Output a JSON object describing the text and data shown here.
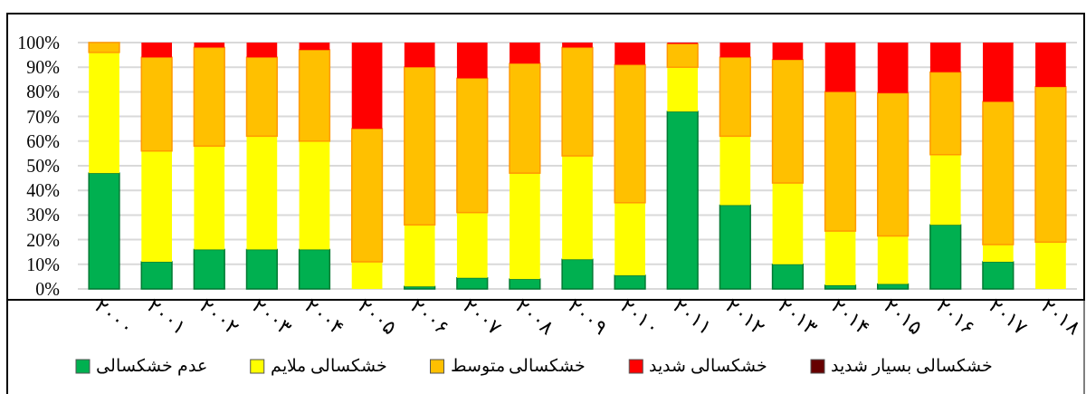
{
  "chart_data": {
    "type": "bar",
    "stacked": true,
    "grid": "y",
    "legend": "bottom",
    "categories": [
      "۲۰۰۰",
      "۲۰۰۱",
      "۲۰۰۲",
      "۲۰۰۳",
      "۲۰۰۴",
      "۲۰۰۵",
      "۲۰۰۶",
      "۲۰۰۷",
      "۲۰۰۸",
      "۲۰۰۹",
      "۲۰۱۰",
      "۲۰۱۱",
      "۲۰۱۲",
      "۲۰۱۳",
      "۲۰۱۴",
      "۲۰۱۵",
      "۲۰۱۶",
      "۲۰۱۷",
      "۲۰۱۸"
    ],
    "ylim": [
      0,
      100
    ],
    "yticks": [
      {
        "value": 0,
        "label": "0%"
      },
      {
        "value": 10,
        "label": "10%"
      },
      {
        "value": 20,
        "label": "20%"
      },
      {
        "value": 30,
        "label": "30%"
      },
      {
        "value": 40,
        "label": "40%"
      },
      {
        "value": 50,
        "label": "50%"
      },
      {
        "value": 60,
        "label": "60%"
      },
      {
        "value": 70,
        "label": "70%"
      },
      {
        "value": 80,
        "label": "80%"
      },
      {
        "value": 90,
        "label": "90%"
      },
      {
        "value": 100,
        "label": "100%"
      }
    ],
    "series": [
      {
        "name": "عدم خشکسالی",
        "color": "#00b050",
        "values": [
          47,
          11,
          16,
          16,
          16,
          0,
          1,
          4.5,
          4,
          12,
          5.5,
          72,
          34,
          10,
          1.5,
          2,
          26,
          11,
          0
        ]
      },
      {
        "name": "خشکسالی ملایم",
        "color": "#ffff00",
        "values": [
          49,
          45,
          42,
          46,
          44,
          11,
          25,
          26.5,
          43,
          42,
          29.5,
          18,
          28,
          33,
          22,
          19.5,
          28.5,
          7,
          19
        ]
      },
      {
        "name": "خشکسالی متوسط",
        "color": "#ffc000",
        "values": [
          4,
          38,
          40,
          32,
          37,
          54,
          64,
          54.5,
          44.5,
          44,
          56,
          9.5,
          32,
          50,
          56.5,
          58,
          33.5,
          58,
          63
        ]
      },
      {
        "name": "خشکسالی شدید",
        "color": "#ff0000",
        "values": [
          0,
          6,
          2,
          6,
          3,
          35,
          10,
          14.5,
          8.5,
          2,
          9,
          0.5,
          6,
          7,
          20,
          20.5,
          12,
          24,
          18
        ]
      },
      {
        "name": "خشکسالی بسیار شدید",
        "color": "#660000",
        "values": [
          0,
          0,
          0,
          0,
          0,
          0,
          0,
          0,
          0,
          0,
          0,
          0,
          0,
          0,
          0,
          0,
          0,
          0,
          0
        ]
      }
    ]
  }
}
